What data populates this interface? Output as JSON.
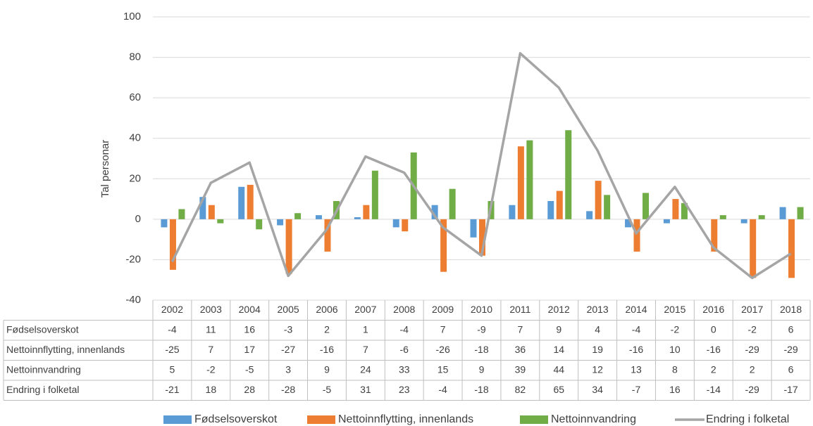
{
  "chart_data": {
    "type": "bar",
    "y_label": "Tal personar",
    "categories": [
      "2002",
      "2003",
      "2004",
      "2005",
      "2006",
      "2007",
      "2008",
      "2009",
      "2010",
      "2011",
      "2012",
      "2013",
      "2014",
      "2015",
      "2016",
      "2017",
      "2018"
    ],
    "series": [
      {
        "name": "Fødselsoverskot",
        "color": "#5b9bd5",
        "type": "bar",
        "values": [
          -4,
          11,
          16,
          -3,
          2,
          1,
          -4,
          7,
          -9,
          7,
          9,
          4,
          -4,
          -2,
          0,
          -2,
          6
        ]
      },
      {
        "name": "Nettoinnflytting, innenlands",
        "color": "#ed7d31",
        "type": "bar",
        "values": [
          -25,
          7,
          17,
          -27,
          -16,
          7,
          -6,
          -26,
          -18,
          36,
          14,
          19,
          -16,
          10,
          -16,
          -29,
          -29
        ]
      },
      {
        "name": "Nettoinnvandring",
        "color": "#70ad47",
        "type": "bar",
        "values": [
          5,
          -2,
          -5,
          3,
          9,
          24,
          33,
          15,
          9,
          39,
          44,
          12,
          13,
          8,
          2,
          2,
          6
        ]
      },
      {
        "name": "Endring i folketal",
        "color": "#a5a5a5",
        "type": "line",
        "values": [
          -21,
          18,
          28,
          -28,
          -5,
          31,
          23,
          -4,
          -18,
          82,
          65,
          34,
          -7,
          16,
          -14,
          -29,
          -17
        ]
      }
    ],
    "ylim": [
      -40,
      100
    ],
    "yticks": [
      -40,
      -20,
      0,
      20,
      40,
      60,
      80,
      100
    ],
    "grid": true
  }
}
